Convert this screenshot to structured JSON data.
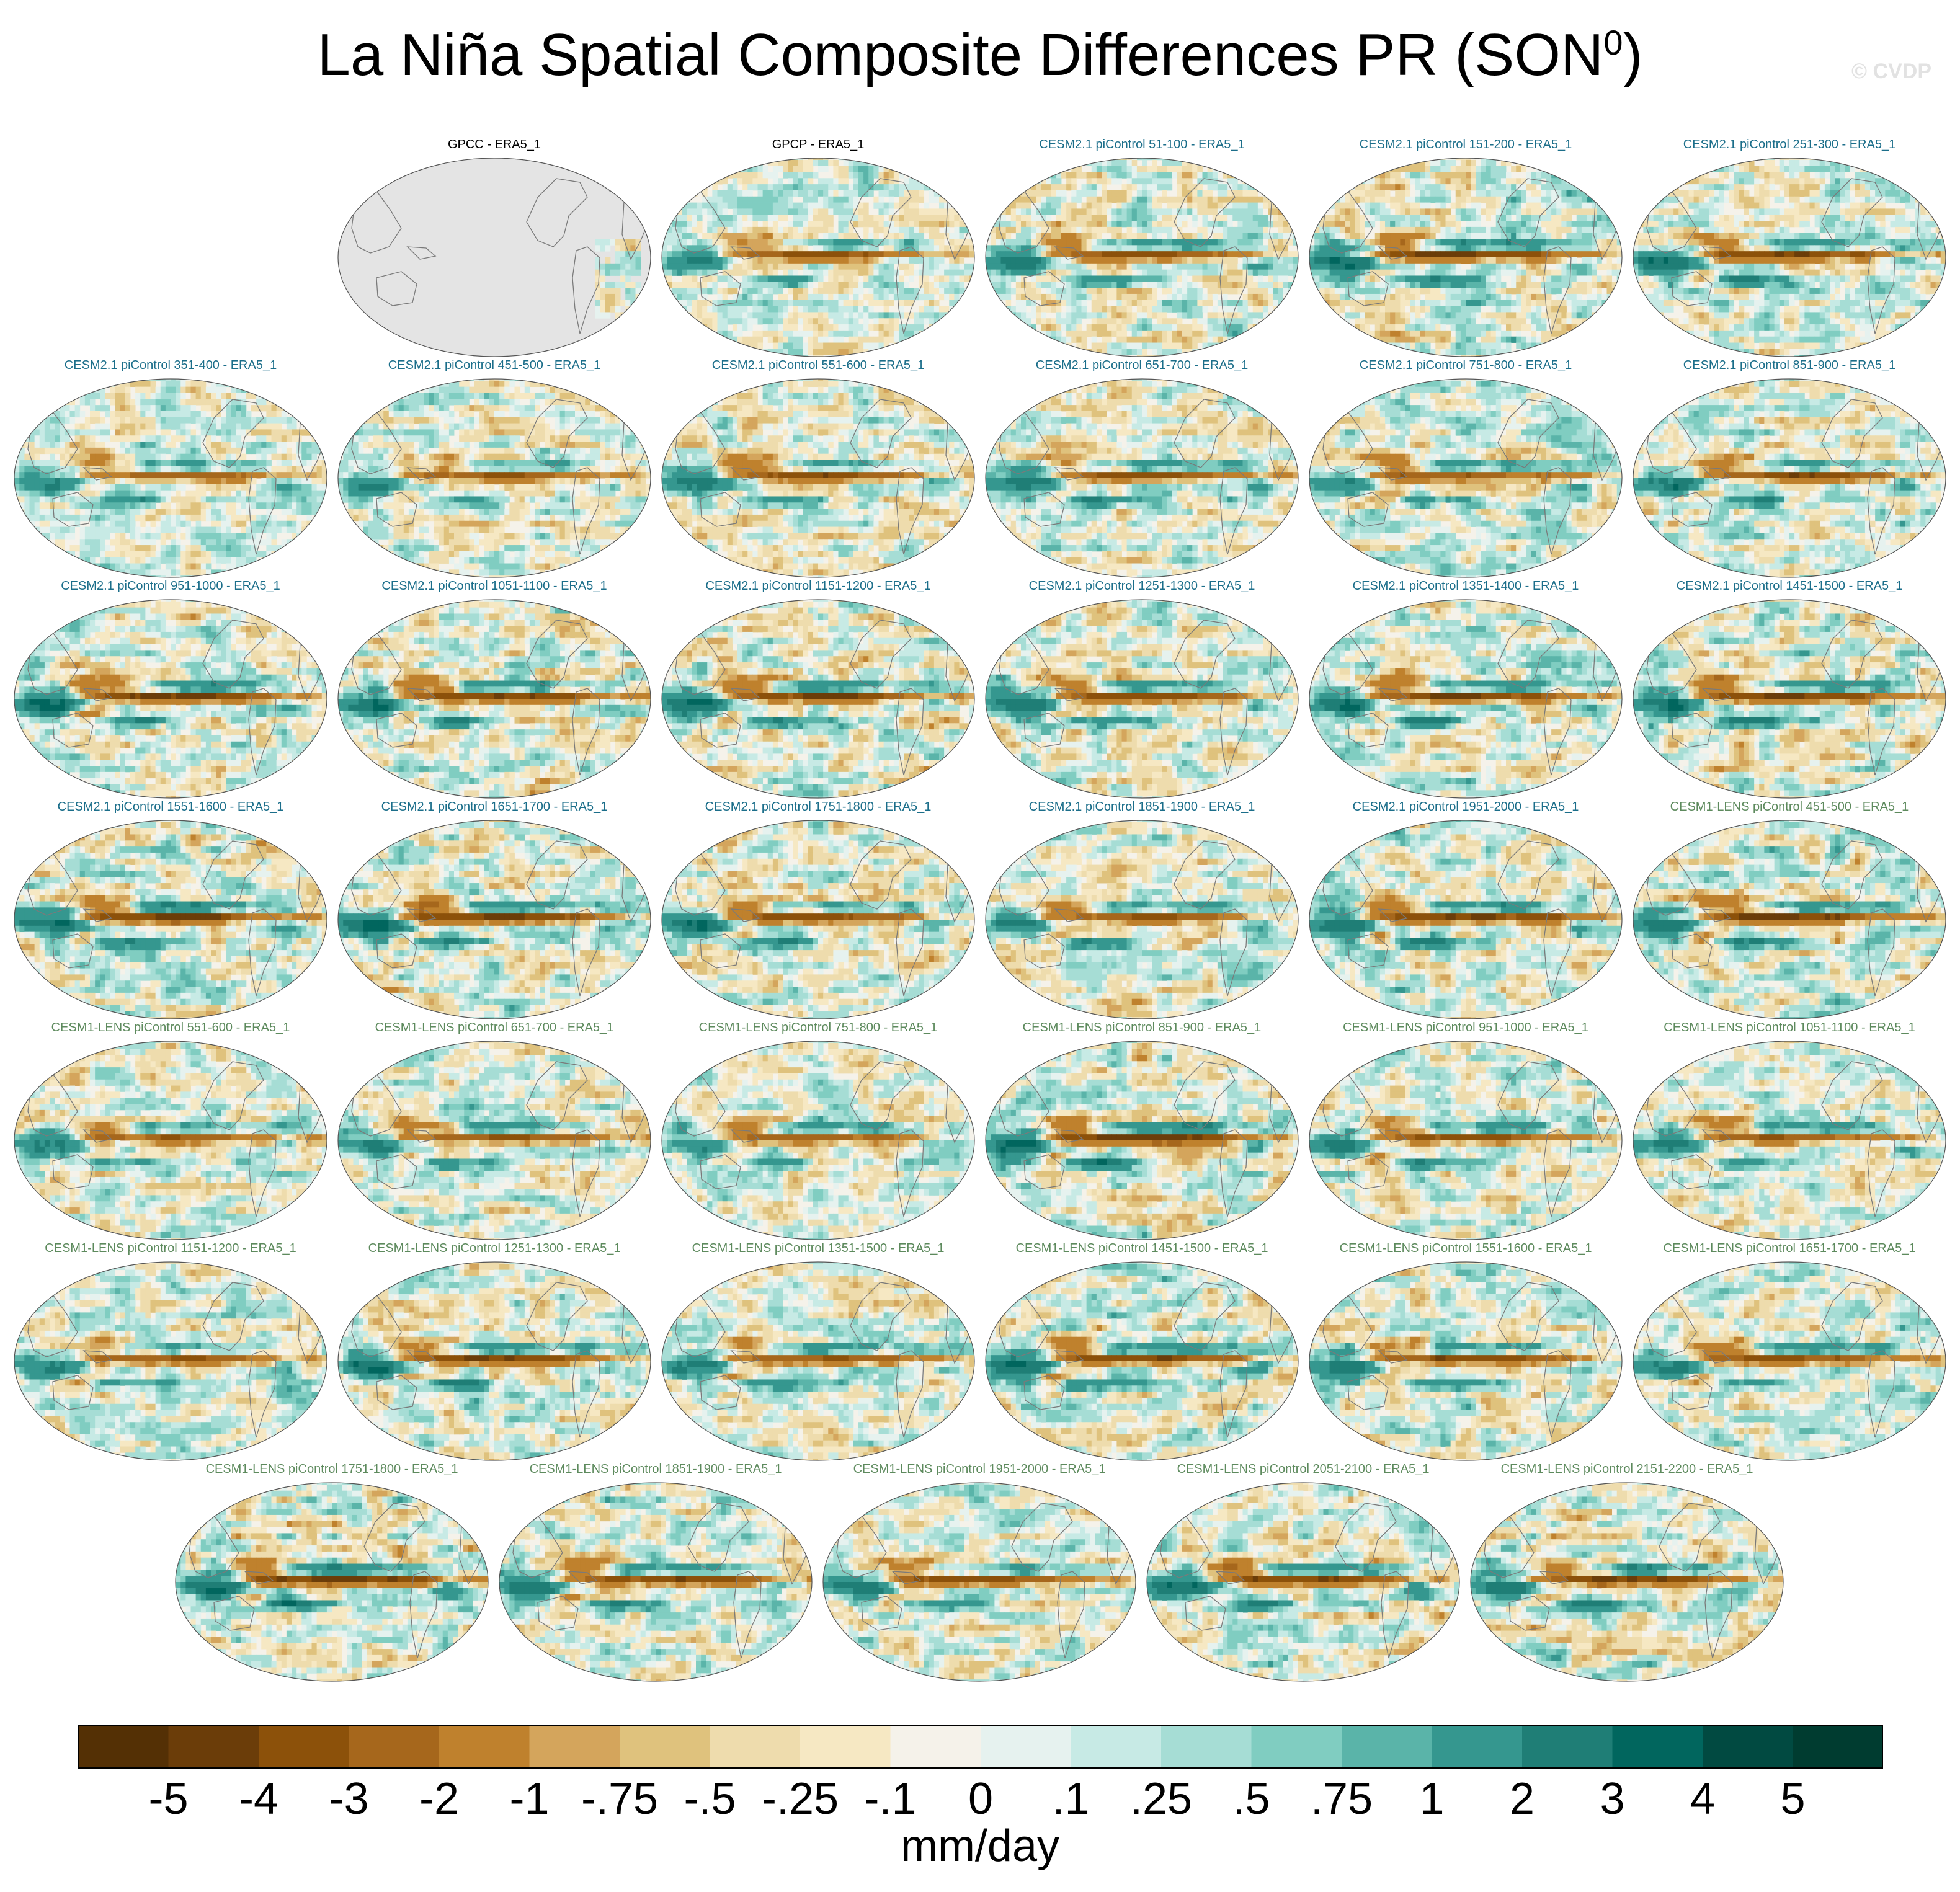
{
  "title": "La Niña Spatial Composite Differences PR (SON",
  "title_superscript": "0",
  "title_close": ")",
  "watermark": "© CVDP",
  "chart_data": {
    "type": "heatmap",
    "description_unit": "mm/day",
    "units": "mm/day",
    "colorbar": {
      "ticks": [
        "-5",
        "-4",
        "-3",
        "-2",
        "-1",
        "-.75",
        "-.5",
        "-.25",
        "-.1",
        "0",
        ".1",
        ".25",
        ".5",
        ".75",
        "1",
        "2",
        "3",
        "4",
        "5"
      ],
      "tick_values": [
        -5,
        -4,
        -3,
        -2,
        -1,
        -0.75,
        -0.5,
        -0.25,
        -0.1,
        0,
        0.1,
        0.25,
        0.5,
        0.75,
        1,
        2,
        3,
        4,
        5
      ],
      "colors": [
        "#543005",
        "#6b3d09",
        "#8c510a",
        "#a6671c",
        "#bf812d",
        "#d4a55c",
        "#dfc27d",
        "#eedcad",
        "#f6e8c3",
        "#f5f2ea",
        "#e6f2ef",
        "#c7eae5",
        "#a6ddd5",
        "#80cdc1",
        "#5ab4a9",
        "#35978f",
        "#1f7e76",
        "#01665e",
        "#014a41",
        "#003c30"
      ]
    },
    "panels": [
      {
        "label": "GPCC - ERA5_1",
        "group": "obs",
        "full": false
      },
      {
        "label": "GPCP - ERA5_1",
        "group": "obs",
        "full": true
      },
      {
        "label": "CESM2.1 piControl 51-100 - ERA5_1",
        "group": "cesm2",
        "full": true
      },
      {
        "label": "CESM2.1 piControl 151-200 - ERA5_1",
        "group": "cesm2",
        "full": true
      },
      {
        "label": "CESM2.1 piControl 251-300 - ERA5_1",
        "group": "cesm2",
        "full": true
      },
      {
        "label": "CESM2.1 piControl 351-400 - ERA5_1",
        "group": "cesm2",
        "full": true
      },
      {
        "label": "CESM2.1 piControl 451-500 - ERA5_1",
        "group": "cesm2",
        "full": true
      },
      {
        "label": "CESM2.1 piControl 551-600 - ERA5_1",
        "group": "cesm2",
        "full": true
      },
      {
        "label": "CESM2.1 piControl 651-700 - ERA5_1",
        "group": "cesm2",
        "full": true
      },
      {
        "label": "CESM2.1 piControl 751-800 - ERA5_1",
        "group": "cesm2",
        "full": true
      },
      {
        "label": "CESM2.1 piControl 851-900 - ERA5_1",
        "group": "cesm2",
        "full": true
      },
      {
        "label": "CESM2.1 piControl 951-1000 - ERA5_1",
        "group": "cesm2",
        "full": true
      },
      {
        "label": "CESM2.1 piControl 1051-1100 - ERA5_1",
        "group": "cesm2",
        "full": true
      },
      {
        "label": "CESM2.1 piControl 1151-1200 - ERA5_1",
        "group": "cesm2",
        "full": true
      },
      {
        "label": "CESM2.1 piControl 1251-1300 - ERA5_1",
        "group": "cesm2",
        "full": true
      },
      {
        "label": "CESM2.1 piControl 1351-1400 - ERA5_1",
        "group": "cesm2",
        "full": true
      },
      {
        "label": "CESM2.1 piControl 1451-1500 - ERA5_1",
        "group": "cesm2",
        "full": true
      },
      {
        "label": "CESM2.1 piControl 1551-1600 - ERA5_1",
        "group": "cesm2",
        "full": true
      },
      {
        "label": "CESM2.1 piControl 1651-1700 - ERA5_1",
        "group": "cesm2",
        "full": true
      },
      {
        "label": "CESM2.1 piControl 1751-1800 - ERA5_1",
        "group": "cesm2",
        "full": true
      },
      {
        "label": "CESM2.1 piControl 1851-1900 - ERA5_1",
        "group": "cesm2",
        "full": true
      },
      {
        "label": "CESM2.1 piControl 1951-2000 - ERA5_1",
        "group": "cesm2",
        "full": true
      },
      {
        "label": "CESM1-LENS piControl 451-500 - ERA5_1",
        "group": "cesm1",
        "full": true
      },
      {
        "label": "CESM1-LENS piControl 551-600 - ERA5_1",
        "group": "cesm1",
        "full": true
      },
      {
        "label": "CESM1-LENS piControl 651-700 - ERA5_1",
        "group": "cesm1",
        "full": true
      },
      {
        "label": "CESM1-LENS piControl 751-800 - ERA5_1",
        "group": "cesm1",
        "full": true
      },
      {
        "label": "CESM1-LENS piControl 851-900 - ERA5_1",
        "group": "cesm1",
        "full": true
      },
      {
        "label": "CESM1-LENS piControl 951-1000 - ERA5_1",
        "group": "cesm1",
        "full": true
      },
      {
        "label": "CESM1-LENS piControl 1051-1100 - ERA5_1",
        "group": "cesm1",
        "full": true
      },
      {
        "label": "CESM1-LENS piControl 1151-1200 - ERA5_1",
        "group": "cesm1",
        "full": true
      },
      {
        "label": "CESM1-LENS piControl 1251-1300 - ERA5_1",
        "group": "cesm1",
        "full": true
      },
      {
        "label": "CESM1-LENS piControl 1351-1500 - ERA5_1",
        "group": "cesm1",
        "full": true
      },
      {
        "label": "CESM1-LENS piControl 1451-1500 - ERA5_1",
        "group": "cesm1",
        "full": true
      },
      {
        "label": "CESM1-LENS piControl 1551-1600 - ERA5_1",
        "group": "cesm1",
        "full": true
      },
      {
        "label": "CESM1-LENS piControl 1651-1700 - ERA5_1",
        "group": "cesm1",
        "full": true
      },
      {
        "label": "CESM1-LENS piControl 1751-1800 - ERA5_1",
        "group": "cesm1",
        "full": true
      },
      {
        "label": "CESM1-LENS piControl 1851-1900 - ERA5_1",
        "group": "cesm1",
        "full": true
      },
      {
        "label": "CESM1-LENS piControl 1951-2000 - ERA5_1",
        "group": "cesm1",
        "full": true
      },
      {
        "label": "CESM1-LENS piControl 2051-2100 - ERA5_1",
        "group": "cesm1",
        "full": true
      },
      {
        "label": "CESM1-LENS piControl 2151-2200 - ERA5_1",
        "group": "cesm1",
        "full": true
      }
    ],
    "label_colors": {
      "obs": "#000000",
      "cesm2": "#1b6e8a",
      "cesm1": "#5d8a5d"
    }
  }
}
